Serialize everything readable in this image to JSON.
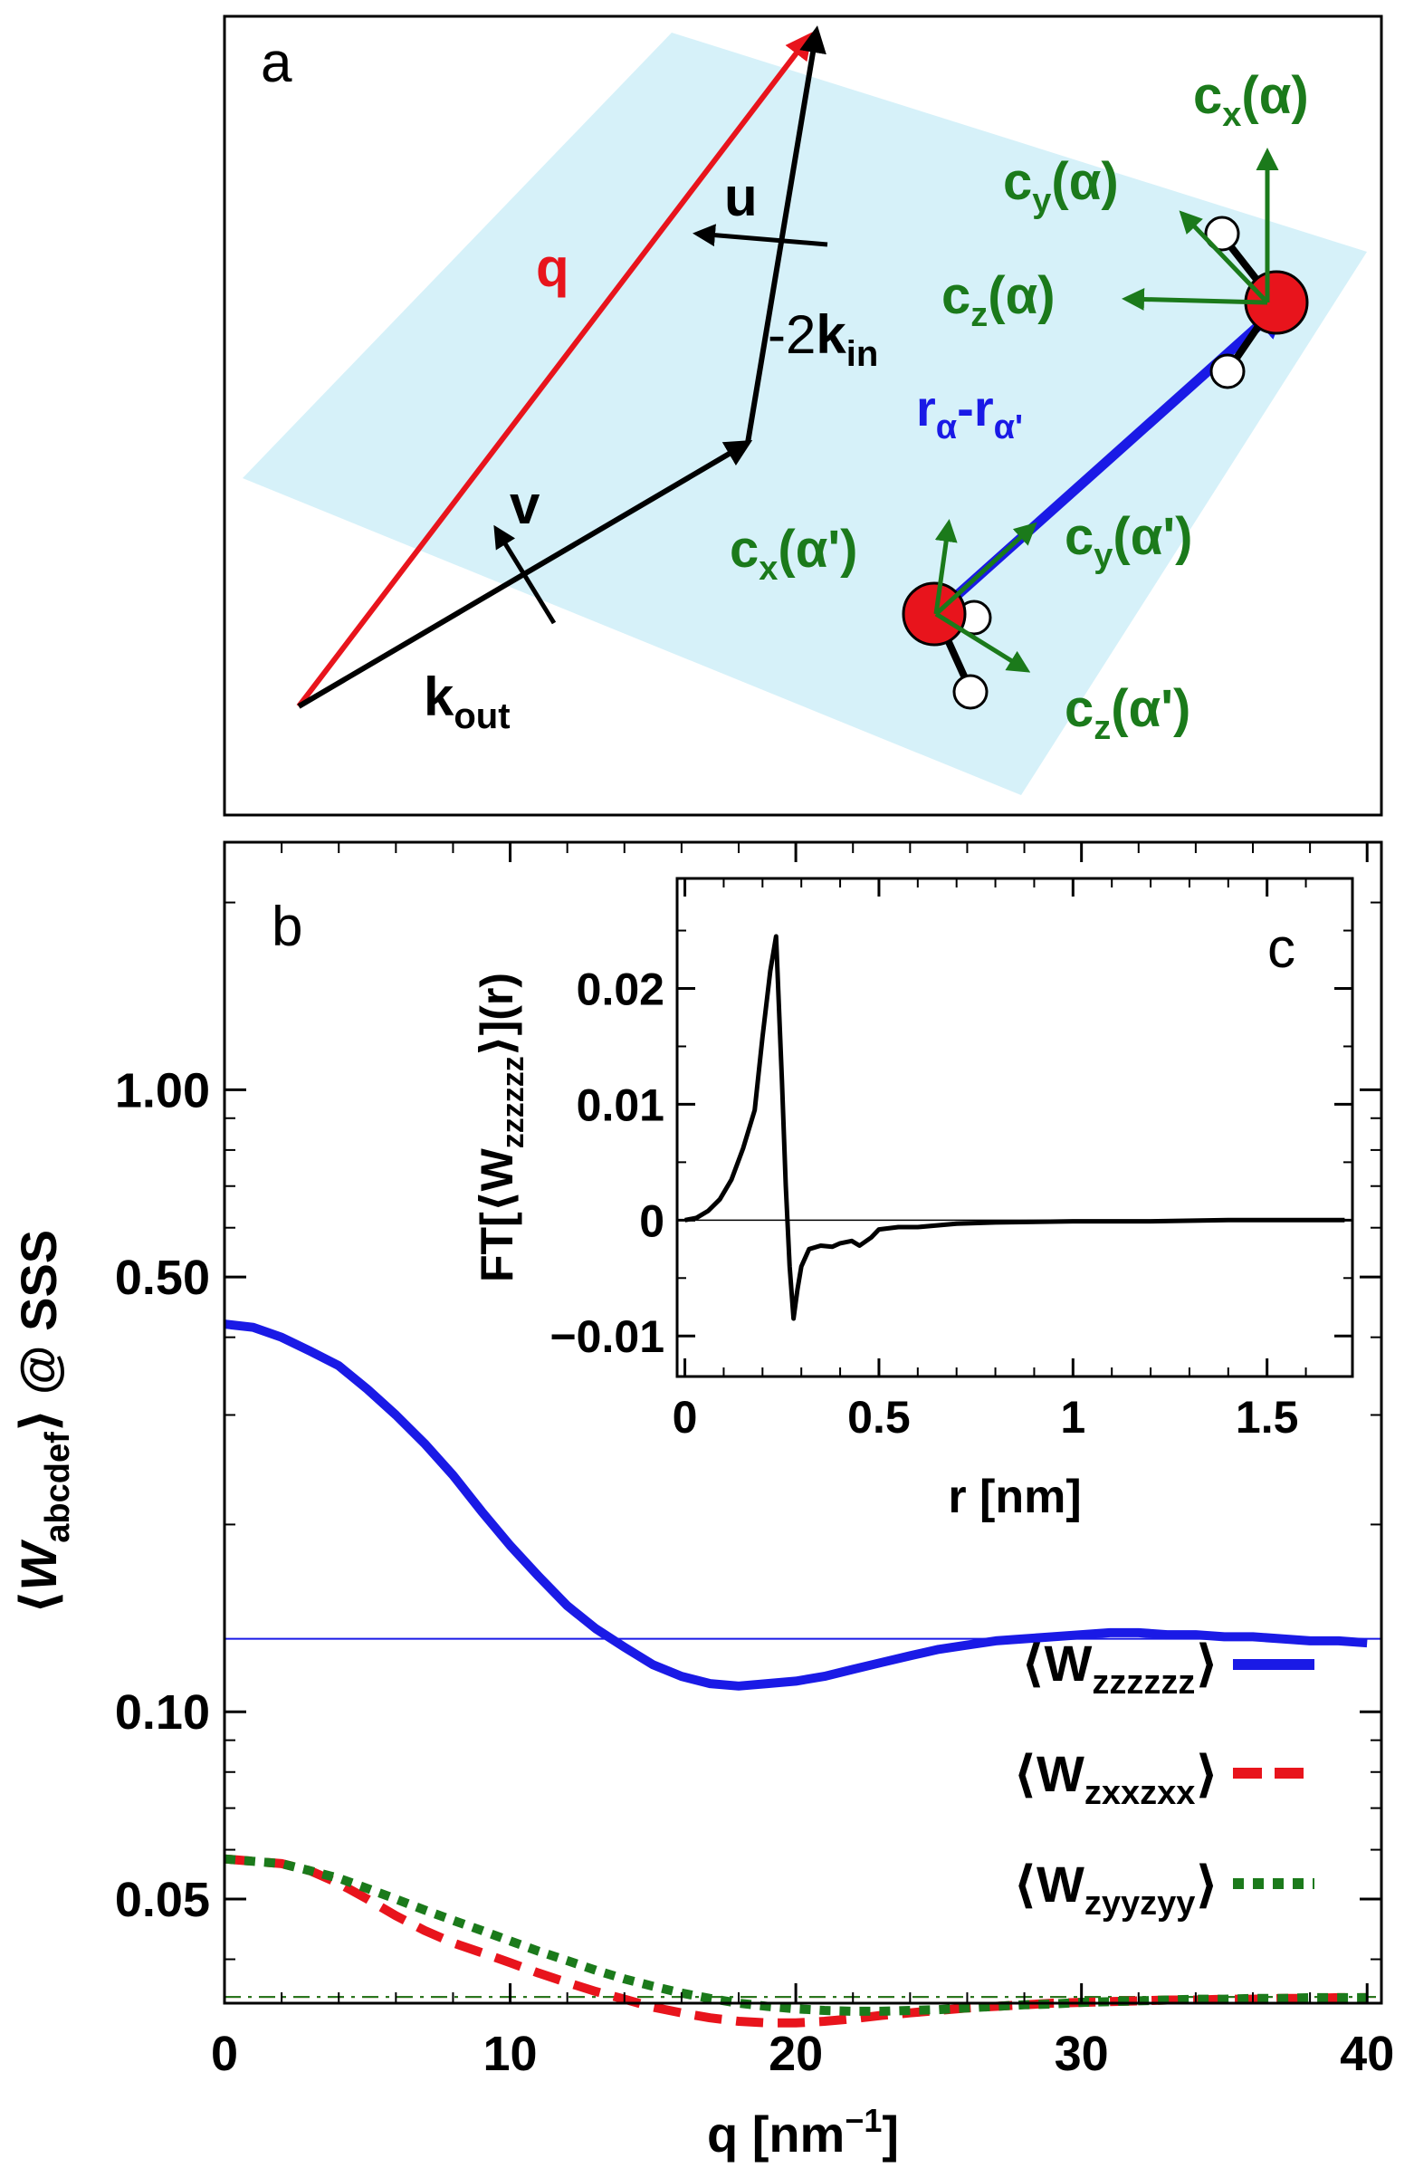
{
  "panel_a": {
    "label": "a",
    "plane_color": "#d6f1f9",
    "vectors": {
      "q": "q",
      "u": "u",
      "v": "v",
      "neg2": "-2",
      "kin": "k",
      "kin_sub": "in",
      "kout": "k",
      "kout_sub": "out",
      "r_a": "r",
      "r_a_sub": "α",
      "minus": "-",
      "r_ap": "r",
      "r_ap_sub": "α'"
    },
    "axes_alpha": {
      "cx": "c",
      "cx_sub": "x",
      "cx_arg": "(α)",
      "cy": "c",
      "cy_sub": "y",
      "cy_arg": "(α)",
      "cz": "c",
      "cz_sub": "z",
      "cz_arg": "(α)"
    },
    "axes_alpha_prime": {
      "cx": "c",
      "cx_sub": "x",
      "cx_arg": "(α')",
      "cy": "c",
      "cy_sub": "y",
      "cy_arg": "(α')",
      "cz": "c",
      "cz_sub": "z",
      "cz_arg": "(α')"
    },
    "colors": {
      "q": "#e8141c",
      "r": "#1a1ae6",
      "c": "#1b7a1b",
      "black": "#000000",
      "oxygen": "#e8141c"
    }
  },
  "chart_data": [
    {
      "type": "line",
      "panel": "b",
      "label": "b",
      "xlabel": "q [nm",
      "xlabel_sup": "−1",
      "xlabel_end": "]",
      "ylabel_parts": [
        "⟨",
        "W",
        "abcdef",
        "⟩ @ SSS"
      ],
      "xlim": [
        0,
        40.5
      ],
      "ylim": [
        0.034,
        2.5
      ],
      "yscale": "log",
      "xticks": [
        0,
        10,
        20,
        30,
        40
      ],
      "xtick_labels": [
        "0",
        "10",
        "20",
        "30",
        "40"
      ],
      "yticks": [
        0.05,
        0.1,
        0.5,
        1.0
      ],
      "ytick_labels": [
        "0.05",
        "0.10",
        "0.50",
        "1.00"
      ],
      "legend_position": "bottom-right",
      "series": [
        {
          "name": "⟨W_zzzzzz⟩",
          "legend": {
            "pre": "⟨W",
            "sub": "zzzzzz",
            "post": "⟩"
          },
          "color": "#1a1ae6",
          "dash": "solid",
          "x": [
            0,
            1,
            2,
            3,
            4,
            5,
            6,
            7,
            8,
            9,
            10,
            11,
            12,
            13,
            14,
            15,
            16,
            17,
            18,
            19,
            20,
            21,
            22,
            23,
            24,
            25,
            26,
            27,
            28,
            29,
            30,
            31,
            32,
            33,
            34,
            35,
            36,
            37,
            38,
            39,
            40
          ],
          "values": [
            0.42,
            0.415,
            0.4,
            0.38,
            0.36,
            0.33,
            0.3,
            0.27,
            0.24,
            0.21,
            0.185,
            0.165,
            0.148,
            0.136,
            0.127,
            0.119,
            0.114,
            0.111,
            0.11,
            0.111,
            0.112,
            0.114,
            0.117,
            0.12,
            0.123,
            0.126,
            0.128,
            0.13,
            0.131,
            0.132,
            0.133,
            0.134,
            0.134,
            0.133,
            0.133,
            0.132,
            0.132,
            0.131,
            0.13,
            0.13,
            0.129
          ]
        },
        {
          "name": "⟨W_zxxzxx⟩",
          "legend": {
            "pre": "⟨W",
            "sub": "zxxzxx",
            "post": "⟩"
          },
          "color": "#e8141c",
          "dash": "long",
          "x": [
            0,
            1,
            2,
            3,
            4,
            5,
            6,
            7,
            8,
            9,
            10,
            11,
            12,
            13,
            14,
            15,
            16,
            17,
            18,
            19,
            20,
            21,
            22,
            23,
            24,
            25,
            26,
            27,
            28,
            29,
            30,
            31,
            32,
            33,
            34,
            35,
            36,
            37,
            38,
            39,
            40
          ],
          "values": [
            0.058,
            0.0575,
            0.057,
            0.0555,
            0.053,
            0.05,
            0.047,
            0.0445,
            0.0425,
            0.041,
            0.0395,
            0.038,
            0.0367,
            0.0355,
            0.0345,
            0.0335,
            0.0328,
            0.0322,
            0.0318,
            0.0316,
            0.0316,
            0.0318,
            0.0321,
            0.0325,
            0.0328,
            0.0331,
            0.0334,
            0.0336,
            0.0338,
            0.034,
            0.0341,
            0.0342,
            0.0343,
            0.0344,
            0.0344,
            0.0345,
            0.0345,
            0.0346,
            0.0346,
            0.0347,
            0.0347
          ]
        },
        {
          "name": "⟨W_zyyzyy⟩",
          "legend": {
            "pre": "⟨W",
            "sub": "zyyzyy",
            "post": "⟩"
          },
          "color": "#1b7a1b",
          "dash": "dotted",
          "x": [
            0,
            1,
            2,
            3,
            4,
            5,
            6,
            7,
            8,
            9,
            10,
            11,
            12,
            13,
            14,
            15,
            16,
            17,
            18,
            19,
            20,
            21,
            22,
            23,
            24,
            25,
            26,
            27,
            28,
            29,
            30,
            31,
            32,
            33,
            34,
            35,
            36,
            37,
            38,
            39,
            40
          ],
          "values": [
            0.058,
            0.0575,
            0.057,
            0.0555,
            0.054,
            0.052,
            0.05,
            0.048,
            0.0462,
            0.0445,
            0.0428,
            0.0412,
            0.0398,
            0.0384,
            0.0372,
            0.0362,
            0.0353,
            0.0346,
            0.034,
            0.0336,
            0.0333,
            0.0331,
            0.033,
            0.033,
            0.0331,
            0.0332,
            0.0334,
            0.0336,
            0.0338,
            0.0339,
            0.0341,
            0.0342,
            0.0343,
            0.0344,
            0.0345,
            0.0345,
            0.0346,
            0.0346,
            0.0347,
            0.0347,
            0.0347
          ]
        }
      ],
      "reference_lines": [
        {
          "y": 0.131,
          "color": "#1a1ae6",
          "dash": "solid"
        },
        {
          "y": 0.0348,
          "color": "#e8141c",
          "dash": "dashdot"
        },
        {
          "y": 0.0348,
          "color": "#1b7a1b",
          "dash": "dashdot"
        }
      ]
    },
    {
      "type": "line",
      "panel": "c",
      "label": "c",
      "xlabel": "r [nm]",
      "ylabel_parts": [
        "FT[⟨W",
        "zzzzzz",
        "⟩](r)"
      ],
      "xlim": [
        -0.02,
        1.72
      ],
      "ylim": [
        -0.0135,
        0.0295
      ],
      "xticks": [
        0,
        0.5,
        1,
        1.5
      ],
      "xtick_labels": [
        "0",
        "0.5",
        "1",
        "1.5"
      ],
      "yticks": [
        -0.01,
        0,
        0.01,
        0.02
      ],
      "ytick_labels": [
        "−0.01",
        "0",
        "0.01",
        "0.02"
      ],
      "zero_line": true,
      "series": [
        {
          "color": "#000000",
          "x": [
            0,
            0.03,
            0.06,
            0.09,
            0.12,
            0.15,
            0.18,
            0.2,
            0.22,
            0.235,
            0.25,
            0.26,
            0.27,
            0.28,
            0.29,
            0.3,
            0.32,
            0.35,
            0.38,
            0.4,
            0.43,
            0.45,
            0.48,
            0.5,
            0.55,
            0.6,
            0.7,
            0.8,
            1.0,
            1.2,
            1.4,
            1.6,
            1.7
          ],
          "values": [
            0.0,
            0.0002,
            0.0008,
            0.0018,
            0.0035,
            0.0062,
            0.0095,
            0.0158,
            0.0215,
            0.0245,
            0.012,
            0.003,
            -0.004,
            -0.0085,
            -0.006,
            -0.004,
            -0.0025,
            -0.0022,
            -0.0023,
            -0.002,
            -0.0018,
            -0.0022,
            -0.0015,
            -0.0008,
            -0.0006,
            -0.0006,
            -0.0003,
            -0.0002,
            -0.0001,
            -0.0001,
            0.0,
            0.0,
            0.0
          ]
        }
      ]
    }
  ]
}
